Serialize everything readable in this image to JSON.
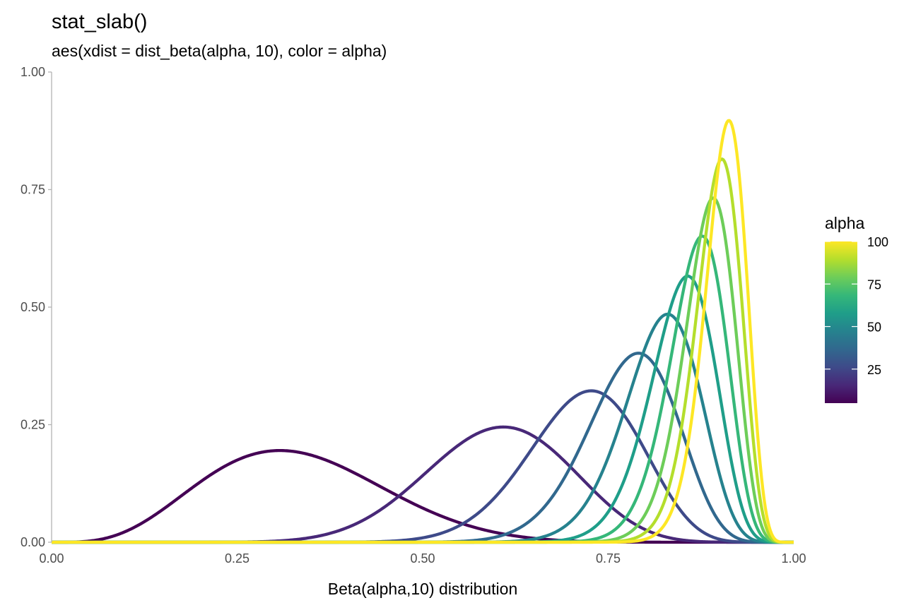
{
  "chart_data": {
    "type": "line",
    "title": "stat_slab()",
    "subtitle": "aes(xdist = dist_beta(alpha, 10), color = alpha)",
    "xlabel": "Beta(alpha,10) distribution",
    "ylabel": "",
    "xlim": [
      0,
      1
    ],
    "ylim": [
      0,
      1
    ],
    "x_ticks": [
      "0.00",
      "0.25",
      "0.50",
      "0.75",
      "1.00"
    ],
    "y_ticks": [
      "0.00",
      "0.25",
      "0.50",
      "0.75",
      "1.00"
    ],
    "grid": false,
    "legend": {
      "title": "alpha",
      "position": "right",
      "type": "colorbar",
      "range": [
        5,
        100
      ],
      "labels": [
        "25",
        "50",
        "75",
        "100"
      ],
      "palette": [
        "#440154",
        "#482878",
        "#3E4A89",
        "#31688E",
        "#26828E",
        "#1F9E89",
        "#35B779",
        "#6DCD59",
        "#B4DE2C",
        "#FDE725"
      ]
    },
    "series": [
      {
        "alpha": 5,
        "color": "#440154",
        "peak_x": 0.31,
        "peak_height": 0.195
      },
      {
        "alpha": 15,
        "color": "#482878",
        "peak_x": 0.62,
        "peak_height": 0.245
      },
      {
        "alpha": 25,
        "color": "#3E4A89",
        "peak_x": 0.735,
        "peak_height": 0.322
      },
      {
        "alpha": 35,
        "color": "#31688E",
        "peak_x": 0.797,
        "peak_height": 0.402
      },
      {
        "alpha": 45,
        "color": "#26828E",
        "peak_x": 0.837,
        "peak_height": 0.485
      },
      {
        "alpha": 55,
        "color": "#1F9E89",
        "peak_x": 0.862,
        "peak_height": 0.566
      },
      {
        "alpha": 65,
        "color": "#35B779",
        "peak_x": 0.88,
        "peak_height": 0.651
      },
      {
        "alpha": 75,
        "color": "#6DCD59",
        "peak_x": 0.895,
        "peak_height": 0.732
      },
      {
        "alpha": 85,
        "color": "#B4DE2C",
        "peak_x": 0.906,
        "peak_height": 0.815
      },
      {
        "alpha": 95,
        "color": "#FDE725",
        "peak_x": 0.915,
        "peak_height": 0.897
      }
    ]
  }
}
